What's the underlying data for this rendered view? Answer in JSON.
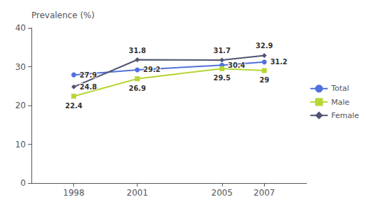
{
  "chart_data": {
    "type": "line",
    "ylabel": "Prevalence (%)",
    "x": [
      1998,
      2001,
      2005,
      2007
    ],
    "series": [
      {
        "name": "Total",
        "values": [
          27.9,
          29.2,
          30.4,
          31.2
        ],
        "marker": "circle"
      },
      {
        "name": "Male",
        "values": [
          22.4,
          26.9,
          29.5,
          29.0
        ],
        "marker": "square"
      },
      {
        "name": "Female",
        "values": [
          24.8,
          31.8,
          31.7,
          32.9
        ],
        "marker": "diamond"
      }
    ],
    "xlim": [
      1996,
      2009
    ],
    "xticks": [
      1998,
      2001,
      2005,
      2007
    ],
    "ylim": [
      0,
      40
    ],
    "yticks": [
      0,
      10,
      20,
      30,
      40
    ],
    "grid": false,
    "legend": "right",
    "data_labels": true
  }
}
